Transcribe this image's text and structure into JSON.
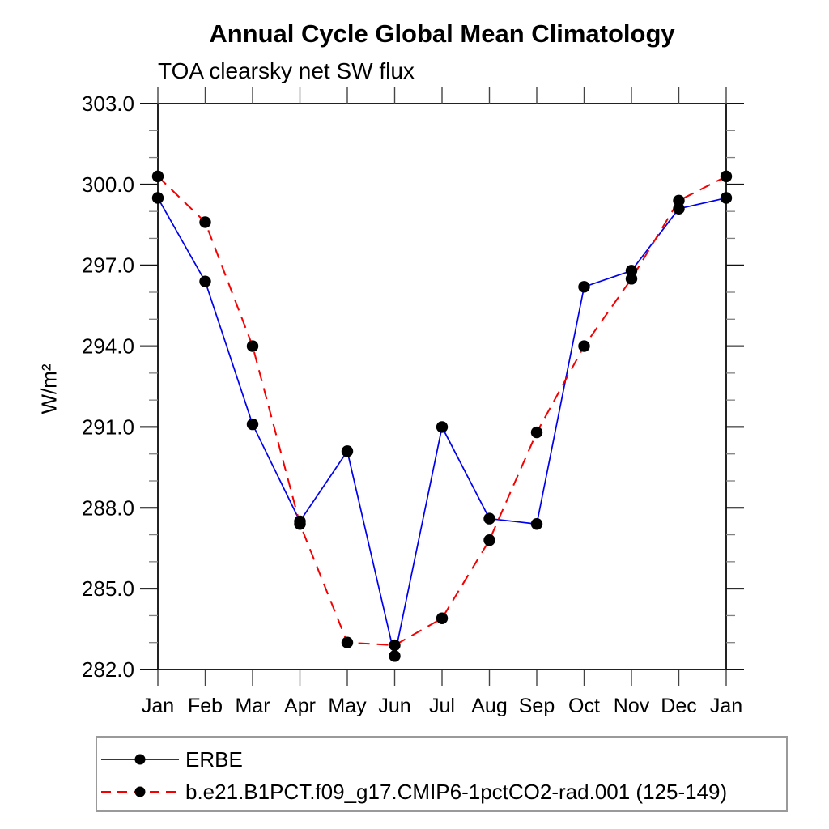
{
  "title": "Annual Cycle Global Mean Climatology",
  "subtitle": "TOA clearsky net SW flux",
  "chart_data": {
    "type": "line",
    "categories": [
      "Jan",
      "Feb",
      "Mar",
      "Apr",
      "May",
      "Jun",
      "Jul",
      "Aug",
      "Sep",
      "Oct",
      "Nov",
      "Dec",
      "Jan"
    ],
    "series": [
      {
        "name": "ERBE",
        "color": "#0000ee",
        "line_style": "solid",
        "marker": "black-dot",
        "values": [
          299.5,
          296.4,
          291.1,
          287.5,
          290.1,
          282.5,
          291.0,
          287.6,
          287.4,
          296.2,
          296.8,
          299.1,
          299.5
        ]
      },
      {
        "name": "b.e21.B1PCT.f09_g17.CMIP6-1pctCO2-rad.001 (125-149)",
        "color": "#f40000",
        "line_style": "dashed",
        "marker": "black-dot",
        "values": [
          300.3,
          298.6,
          294.0,
          287.4,
          283.0,
          282.9,
          283.9,
          286.8,
          290.8,
          294.0,
          296.5,
          299.4,
          300.3
        ]
      }
    ],
    "xlabel": "",
    "ylabel": "W/m²",
    "ylim": [
      282.0,
      303.0
    ],
    "ytick_major_step": 3.0,
    "ytick_minor_step": 1.0,
    "ytick_labels": [
      "282.0",
      "285.0",
      "288.0",
      "291.0",
      "294.0",
      "297.0",
      "300.0",
      "303.0"
    ],
    "grid": false,
    "legend_position": "bottom",
    "marker_color": "#000000"
  }
}
